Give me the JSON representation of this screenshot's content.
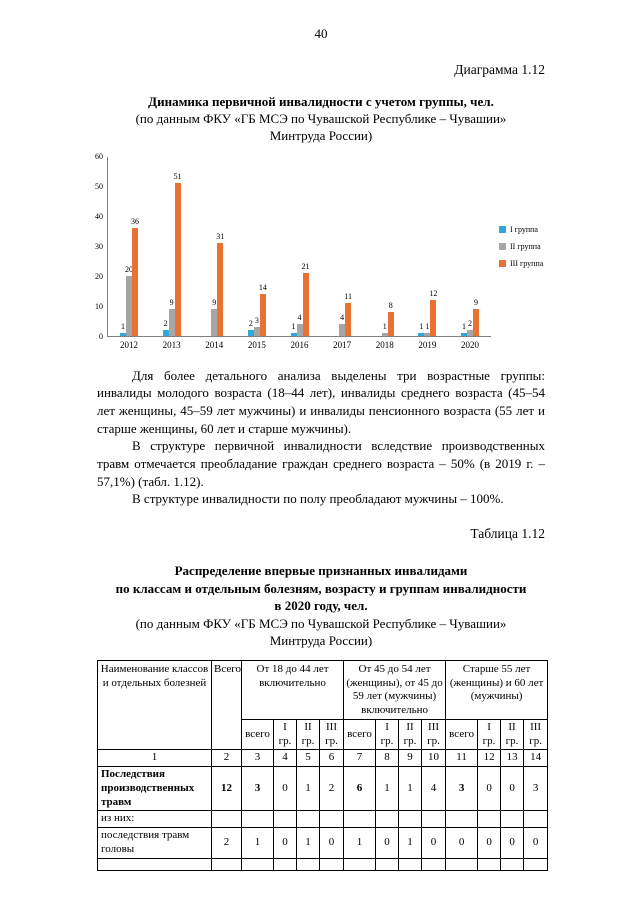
{
  "page": {
    "number": "40"
  },
  "diagram": {
    "label": "Диаграмма 1.12",
    "title": "Динамика первичной инвалидности с учетом группы, чел.",
    "subtitle_lines": [
      "(по данным ФКУ «ГБ МСЭ по Чувашской Республике – Чувашии»",
      "Минтруда России)"
    ]
  },
  "chart_data": {
    "type": "bar",
    "title": "Динамика первичной инвалидности с учетом группы, чел.",
    "categories": [
      "2012",
      "2013",
      "2014",
      "2015",
      "2016",
      "2017",
      "2018",
      "2019",
      "2020"
    ],
    "series": [
      {
        "name": "I группа",
        "color": "#2fa8dc",
        "values": [
          1,
          2,
          0,
          2,
          1,
          0,
          0,
          1,
          1
        ]
      },
      {
        "name": "II группа",
        "color": "#a6a6a6",
        "values": [
          20,
          9,
          9,
          3,
          4,
          4,
          1,
          1,
          2
        ]
      },
      {
        "name": "III группа",
        "color": "#e97132",
        "values": [
          36,
          51,
          31,
          14,
          21,
          11,
          8,
          12,
          9
        ]
      }
    ],
    "ylim": [
      0,
      60
    ],
    "yticks": [
      0,
      10,
      20,
      30,
      40,
      50,
      60
    ],
    "legend_position": "right",
    "grid": false,
    "xlabel": "",
    "ylabel": ""
  },
  "paragraphs": [
    "Для более детального анализа выделены три возрастные группы: инвалиды молодого возраста (18–44 лет), инвалиды среднего возраста (45–54 лет женщины, 45–59 лет мужчины) и инвалиды пенсионного возраста (55 лет и старше женщины, 60 лет и старше мужчины).",
    "В структуре первичной инвалидности вследствие производственных травм отмечается преобладание граждан среднего возраста – 50% (в 2019 г. – 57,1%) (табл. 1.12).",
    "В структуре инвалидности по полу преобладают мужчины – 100%."
  ],
  "table_section": {
    "label": "Таблица 1.12",
    "title_lines": [
      "Распределение впервые признанных инвалидами",
      "по классам и отдельным болезням, возрасту и группам инвалидности",
      "в 2020 году, чел."
    ],
    "subtitle_lines": [
      "(по данным ФКУ «ГБ МСЭ по Чувашской Республике – Чувашии»",
      "Минтруда России)"
    ],
    "header": {
      "col_name": "Наименование классов и отдельных болезней",
      "col_total": "Всего",
      "groups": [
        "От 18 до 44 лет включительно",
        "От 45 до 54 лет (женщины), от 45 до 59 лет (мужчины) включительно",
        "Старше 55 лет (женщины) и 60 лет (мужчины)"
      ],
      "subcols": [
        "всего",
        "I гр.",
        "II гр.",
        "III гр."
      ],
      "numbering": [
        "1",
        "2",
        "3",
        "4",
        "5",
        "6",
        "7",
        "8",
        "9",
        "10",
        "11",
        "12",
        "13",
        "14"
      ]
    },
    "rows": [
      {
        "name": "Последствия производственных травм",
        "name_bold": true,
        "bold_indices": [
          0,
          1,
          5,
          9
        ],
        "values": [
          "12",
          "3",
          "0",
          "1",
          "2",
          "6",
          "1",
          "1",
          "4",
          "3",
          "0",
          "0",
          "3"
        ],
        "empty_row": false
      },
      {
        "name": "из них:",
        "name_bold": false,
        "bold_indices": [],
        "values": [
          "",
          "",
          "",
          "",
          "",
          "",
          "",
          "",
          "",
          "",
          "",
          "",
          ""
        ],
        "empty_row": false
      },
      {
        "name": "последствия травм головы",
        "name_bold": false,
        "bold_indices": [],
        "values": [
          "2",
          "1",
          "0",
          "1",
          "0",
          "1",
          "0",
          "1",
          "0",
          "0",
          "0",
          "0",
          "0"
        ],
        "empty_row": false
      },
      {
        "name": "",
        "name_bold": false,
        "bold_indices": [],
        "values": [
          "",
          "",
          "",
          "",
          "",
          "",
          "",
          "",
          "",
          "",
          "",
          "",
          ""
        ],
        "empty_row": true
      }
    ]
  }
}
